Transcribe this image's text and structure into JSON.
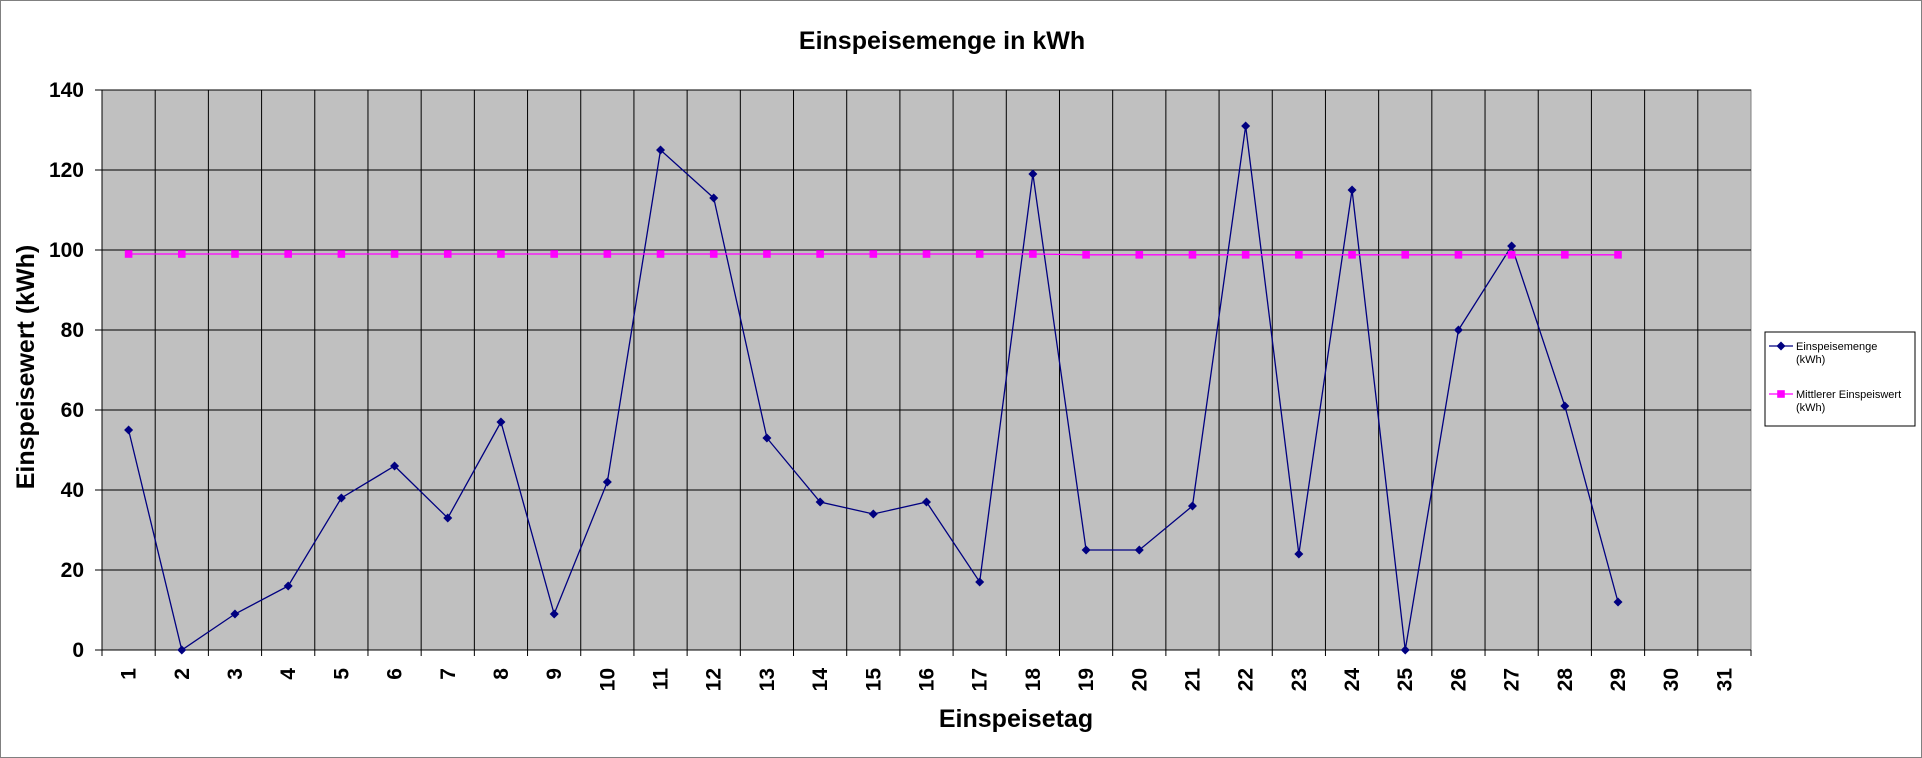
{
  "chart_data": {
    "type": "line",
    "title": "Einspeisemenge in kWh",
    "xlabel": "Einspeisetag",
    "ylabel": "Einspeisewert  (kWh)",
    "categories": [
      "1",
      "2",
      "3",
      "4",
      "5",
      "6",
      "7",
      "8",
      "9",
      "10",
      "11",
      "12",
      "13",
      "14",
      "15",
      "16",
      "17",
      "18",
      "19",
      "20",
      "21",
      "22",
      "23",
      "24",
      "25",
      "26",
      "27",
      "28",
      "29",
      "30",
      "31"
    ],
    "ylim": [
      0,
      140
    ],
    "yticks": [
      "0",
      "20",
      "40",
      "60",
      "80",
      "100",
      "120",
      "140"
    ],
    "grid": true,
    "legend_position": "right",
    "plot_background": "#c0c0c0",
    "series": [
      {
        "name_lines": [
          "Einspeisemenge",
          "(kWh)"
        ],
        "color": "#000080",
        "marker": "diamond",
        "values": [
          55,
          0,
          9,
          16,
          38,
          46,
          33,
          57,
          9,
          42,
          125,
          113,
          53,
          37,
          34,
          37,
          17,
          119,
          25,
          25,
          36,
          131,
          24,
          115,
          0,
          80,
          101,
          61,
          12,
          null,
          null
        ]
      },
      {
        "name_lines": [
          "Mittlerer Einspeiswert",
          "(kWh)"
        ],
        "color": "#ff00ff",
        "marker": "square",
        "values": [
          99,
          99,
          99,
          99,
          99,
          99,
          99,
          99,
          99,
          99,
          99,
          99,
          99,
          99,
          99,
          99,
          99,
          99,
          98.8,
          98.8,
          98.8,
          98.8,
          98.8,
          98.8,
          98.8,
          98.8,
          98.8,
          98.8,
          98.8,
          null,
          null
        ]
      }
    ]
  }
}
